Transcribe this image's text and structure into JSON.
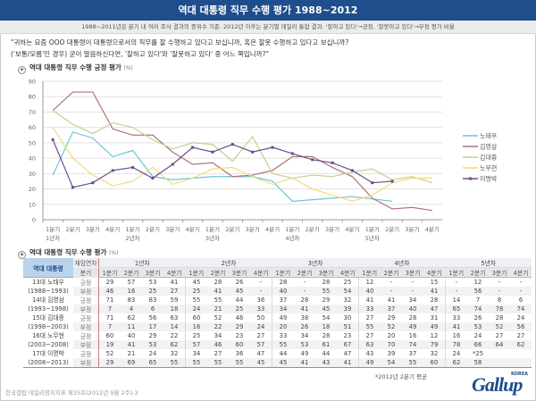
{
  "header": {
    "title": "역대 대통령 직무 수행 평가 1988~2012",
    "subtitle": "1988~2011년은 분기 내 여러 조사 결과의 중위수 기준. 2012년 이후는 분기별 데일리 통합 결과. '잘하고 있다'→긍정, '잘못하고 있다'→부정 평가 비율"
  },
  "question": {
    "line1": "\"귀하는 요즘 OOO 대통령이 대통령으로서의 직무를 잘 수행하고 있다고 보십니까, 혹은 잘못 수행하고 있다고 보십니까?",
    "line2": "('보통/모름'인 경우) 굳이 말씀하신다면, '잘하고 있다'와 '잘못하고 있다' 중 어느 쪽입니까?\""
  },
  "chart_section": {
    "title": "역대 대통령 직무 수행 긍정 평가",
    "unit": "(%)"
  },
  "table_section": {
    "title": "역대 대통령 직무 수행 평가",
    "unit": "(%)"
  },
  "chart_data": {
    "type": "line",
    "title": "역대 대통령 직무 수행 긍정 평가 (%)",
    "xlabel": "",
    "ylabel": "%",
    "ylim": [
      0,
      90
    ],
    "yticks": [
      0,
      10,
      20,
      30,
      40,
      50,
      60,
      70,
      80,
      90
    ],
    "grid": true,
    "legend_position": "right",
    "categories": [
      "1분기",
      "2분기",
      "3분기",
      "4분기",
      "1분기",
      "2분기",
      "3분기",
      "4분기",
      "1분기",
      "2분기",
      "3분기",
      "4분기",
      "1분기",
      "2분기",
      "3분기",
      "4분기",
      "1분기",
      "2분기",
      "3분기",
      "4분기"
    ],
    "year_labels": [
      {
        "index": 0,
        "label": "1년차"
      },
      {
        "index": 4,
        "label": "2년차"
      },
      {
        "index": 8,
        "label": "3년차"
      },
      {
        "index": 12,
        "label": "4년차"
      },
      {
        "index": 16,
        "label": "5년차"
      }
    ],
    "series": [
      {
        "name": "노태우",
        "color": "#6cc5d6",
        "marker": false,
        "values": [
          29,
          57,
          53,
          41,
          45,
          28,
          26,
          null,
          28,
          null,
          28,
          25,
          12,
          null,
          null,
          15,
          null,
          12,
          null,
          null
        ]
      },
      {
        "name": "김영삼",
        "color": "#b0727a",
        "marker": false,
        "values": [
          71,
          83,
          83,
          59,
          55,
          55,
          44,
          36,
          37,
          28,
          29,
          32,
          41,
          41,
          34,
          28,
          14,
          7,
          8,
          6
        ]
      },
      {
        "name": "김대중",
        "color": "#c7ce96",
        "marker": false,
        "values": [
          71,
          62,
          56,
          63,
          60,
          52,
          46,
          50,
          49,
          38,
          54,
          30,
          27,
          29,
          28,
          31,
          33,
          26,
          28,
          24
        ]
      },
      {
        "name": "노무현",
        "color": "#f1dc74",
        "marker": false,
        "values": [
          60,
          40,
          29,
          22,
          25,
          34,
          23,
          27,
          33,
          34,
          28,
          23,
          27,
          20,
          16,
          12,
          16,
          24,
          27,
          27
        ]
      },
      {
        "name": "이명박",
        "color": "#6b4a8e",
        "marker": true,
        "values": [
          52,
          21,
          24,
          32,
          34,
          27,
          36,
          47,
          44,
          49,
          44,
          47,
          43,
          39,
          37,
          32,
          24,
          25,
          null,
          null
        ]
      }
    ]
  },
  "table": {
    "head": {
      "president": "역대 대통령",
      "tenure": "재임연차",
      "quarter": "분기",
      "years": [
        "1년차",
        "2년차",
        "3년차",
        "4년차",
        "5년차"
      ],
      "quarters": [
        "1분기",
        "2분기",
        "3분기",
        "4분기",
        "1분기",
        "2분기",
        "3분기",
        "4분기",
        "1분기",
        "2분기",
        "3분기",
        "4분기",
        "1분기",
        "2분기",
        "3분기",
        "4분기",
        "1분기",
        "2분기",
        "3분기",
        "4분기"
      ]
    },
    "pos_label": "긍정",
    "neg_label": "부정",
    "rows": [
      {
        "name": "13대 노태우",
        "term": "(1988~1993)",
        "pos": [
          "29",
          "57",
          "53",
          "41",
          "45",
          "28",
          "26",
          "-",
          "28",
          "-",
          "28",
          "25",
          "12",
          "-",
          "-",
          "15",
          "-",
          "12",
          "-",
          "-"
        ],
        "neg": [
          "46",
          "16",
          "25",
          "27",
          "25",
          "41",
          "45",
          "-",
          "40",
          "-",
          "55",
          "54",
          "40",
          "-",
          "-",
          "41",
          "-",
          "56",
          "-",
          "-"
        ]
      },
      {
        "name": "14대 김영삼",
        "term": "(1993~1998)",
        "pos": [
          "71",
          "83",
          "83",
          "59",
          "55",
          "55",
          "44",
          "36",
          "37",
          "28",
          "29",
          "32",
          "41",
          "41",
          "34",
          "28",
          "14",
          "7",
          "8",
          "6"
        ],
        "neg": [
          "7",
          "4",
          "6",
          "18",
          "24",
          "21",
          "25",
          "33",
          "34",
          "41",
          "45",
          "39",
          "33",
          "37",
          "40",
          "47",
          "65",
          "74",
          "78",
          "74"
        ]
      },
      {
        "name": "15대 김대중",
        "term": "(1998~2003)",
        "pos": [
          "71",
          "62",
          "56",
          "63",
          "60",
          "52",
          "46",
          "50",
          "49",
          "38",
          "54",
          "30",
          "27",
          "29",
          "28",
          "31",
          "33",
          "26",
          "28",
          "24"
        ],
        "neg": [
          "7",
          "11",
          "17",
          "14",
          "16",
          "22",
          "29",
          "24",
          "20",
          "26",
          "18",
          "51",
          "55",
          "52",
          "49",
          "49",
          "41",
          "53",
          "52",
          "56"
        ]
      },
      {
        "name": "16대 노무현",
        "term": "(2003~2008)",
        "pos": [
          "60",
          "40",
          "29",
          "22",
          "25",
          "34",
          "23",
          "27",
          "33",
          "34",
          "28",
          "23",
          "27",
          "20",
          "16",
          "12",
          "16",
          "24",
          "27",
          "27"
        ],
        "neg": [
          "19",
          "41",
          "53",
          "62",
          "57",
          "46",
          "60",
          "57",
          "55",
          "53",
          "61",
          "67",
          "63",
          "70",
          "74",
          "79",
          "78",
          "66",
          "64",
          "62"
        ]
      },
      {
        "name": "17대 이명박",
        "term": "(2008~2013)",
        "pos": [
          "52",
          "21",
          "24",
          "32",
          "34",
          "27",
          "36",
          "47",
          "44",
          "49",
          "44",
          "47",
          "43",
          "39",
          "37",
          "32",
          "24",
          "*25",
          "",
          ""
        ],
        "neg": [
          "29",
          "69",
          "65",
          "55",
          "55",
          "55",
          "55",
          "45",
          "45",
          "41",
          "43",
          "41",
          "49",
          "54",
          "55",
          "60",
          "62",
          "58",
          "",
          ""
        ]
      }
    ]
  },
  "footnote": "*2012년 2분기 평균",
  "source": "한국갤럽 데일리정치지표 제35호(2012년 9월 2주)-3",
  "logo": {
    "text": "Gallup",
    "sub": "KOREA"
  }
}
